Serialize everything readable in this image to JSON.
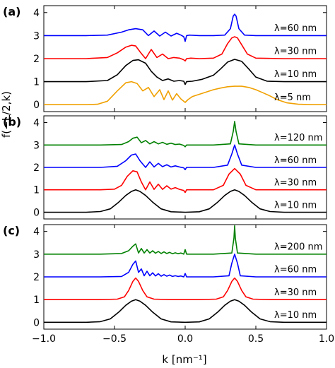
{
  "chart_data": {
    "type": "line",
    "ylabel": "f(−L/2,k)",
    "xlabel": "k [nm⁻¹]",
    "xlim": [
      -1.0,
      1.0
    ],
    "xticks": [
      -1.0,
      -0.5,
      0.0,
      0.5,
      1.0
    ],
    "xtick_labels": [
      "−1.0",
      "−0.5",
      "0.0",
      "0.5",
      "1.0"
    ],
    "grid": false,
    "panels": [
      {
        "label": "(a)",
        "ylim": [
          -0.3,
          4.3
        ],
        "yticks": [
          0,
          1,
          2,
          3,
          4
        ],
        "ytick_labels": [
          "0",
          "1",
          "2",
          "3",
          "4"
        ],
        "series": [
          {
            "name": "λ=60 nm",
            "color": "#0000ff",
            "offset": 3,
            "x": [
              -1.0,
              -0.7,
              -0.55,
              -0.45,
              -0.4,
              -0.35,
              -0.3,
              -0.26,
              -0.22,
              -0.18,
              -0.14,
              -0.1,
              -0.06,
              -0.03,
              -0.01,
              0.0,
              0.01,
              0.03,
              0.1,
              0.2,
              0.28,
              0.32,
              0.34,
              0.35,
              0.36,
              0.38,
              0.42,
              0.5,
              0.7,
              1.0
            ],
            "y": [
              3.0,
              3.0,
              3.02,
              3.15,
              3.25,
              3.3,
              3.25,
              3.0,
              3.2,
              2.98,
              3.15,
              2.98,
              3.1,
              3.02,
              2.95,
              2.75,
              3.0,
              3.02,
              3.0,
              3.0,
              3.02,
              3.3,
              3.85,
              3.93,
              3.85,
              3.3,
              3.02,
              3.0,
              3.0,
              3.0
            ]
          },
          {
            "name": "λ=30 nm",
            "color": "#ff0000",
            "offset": 2,
            "x": [
              -1.0,
              -0.7,
              -0.55,
              -0.48,
              -0.42,
              -0.38,
              -0.35,
              -0.32,
              -0.28,
              -0.24,
              -0.2,
              -0.16,
              -0.12,
              -0.08,
              -0.04,
              -0.01,
              0.0,
              0.01,
              0.04,
              0.1,
              0.2,
              0.26,
              0.3,
              0.33,
              0.35,
              0.37,
              0.4,
              0.44,
              0.5,
              0.7,
              1.0
            ],
            "y": [
              2.0,
              2.0,
              2.05,
              2.25,
              2.5,
              2.58,
              2.55,
              2.3,
              2.0,
              2.4,
              2.05,
              2.2,
              2.0,
              2.05,
              2.02,
              1.95,
              1.9,
              2.0,
              2.02,
              2.0,
              2.02,
              2.2,
              2.65,
              2.9,
              2.95,
              2.9,
              2.6,
              2.2,
              2.02,
              2.0,
              2.0
            ]
          },
          {
            "name": "λ=10 nm",
            "color": "#000000",
            "offset": 1,
            "x": [
              -1.0,
              -0.7,
              -0.55,
              -0.48,
              -0.42,
              -0.37,
              -0.33,
              -0.28,
              -0.24,
              -0.2,
              -0.16,
              -0.12,
              -0.08,
              -0.04,
              -0.01,
              0.0,
              0.01,
              0.05,
              0.12,
              0.2,
              0.25,
              0.3,
              0.35,
              0.4,
              0.45,
              0.5,
              0.58,
              0.7,
              1.0
            ],
            "y": [
              1.0,
              1.0,
              1.05,
              1.3,
              1.7,
              1.92,
              1.95,
              1.8,
              1.45,
              1.2,
              1.05,
              1.12,
              1.02,
              1.05,
              1.02,
              0.88,
              1.0,
              1.02,
              1.1,
              1.28,
              1.55,
              1.85,
              1.97,
              1.88,
              1.55,
              1.2,
              1.02,
              1.0,
              1.0
            ]
          },
          {
            "name": "λ=5 nm",
            "color": "#f0a000",
            "offset": 0,
            "x": [
              -1.0,
              -0.8,
              -0.7,
              -0.62,
              -0.55,
              -0.48,
              -0.42,
              -0.38,
              -0.34,
              -0.3,
              -0.26,
              -0.22,
              -0.18,
              -0.15,
              -0.12,
              -0.09,
              -0.06,
              -0.03,
              0.0,
              0.02,
              0.05,
              0.1,
              0.15,
              0.2,
              0.25,
              0.3,
              0.35,
              0.4,
              0.45,
              0.5,
              0.55,
              0.6,
              0.65,
              0.72,
              0.8,
              0.9,
              1.0
            ],
            "y": [
              0.0,
              0.0,
              0.0,
              0.02,
              0.15,
              0.6,
              0.95,
              1.0,
              0.92,
              0.6,
              0.75,
              0.35,
              0.65,
              0.22,
              0.6,
              0.2,
              0.48,
              0.25,
              0.1,
              0.22,
              0.35,
              0.45,
              0.55,
              0.65,
              0.72,
              0.78,
              0.8,
              0.8,
              0.75,
              0.65,
              0.52,
              0.38,
              0.22,
              0.08,
              0.02,
              0.0,
              0.0
            ]
          }
        ]
      },
      {
        "label": "(b)",
        "ylim": [
          -0.3,
          4.3
        ],
        "yticks": [
          0,
          1,
          2,
          3,
          4
        ],
        "ytick_labels": [
          "0",
          "1",
          "2",
          "3",
          "4"
        ],
        "series": [
          {
            "name": "λ=120 nm",
            "color": "#008000",
            "offset": 3,
            "x": [
              -1.0,
              -0.6,
              -0.45,
              -0.4,
              -0.37,
              -0.34,
              -0.31,
              -0.28,
              -0.25,
              -0.22,
              -0.19,
              -0.16,
              -0.13,
              -0.1,
              -0.07,
              -0.04,
              -0.01,
              0.0,
              0.01,
              0.05,
              0.2,
              0.32,
              0.34,
              0.35,
              0.36,
              0.38,
              0.5,
              1.0
            ],
            "y": [
              3.0,
              3.0,
              3.02,
              3.15,
              3.3,
              3.35,
              3.1,
              3.2,
              3.05,
              3.15,
              3.05,
              3.12,
              3.03,
              3.08,
              3.02,
              3.04,
              2.98,
              2.92,
              3.0,
              3.0,
              3.0,
              3.05,
              3.6,
              4.05,
              3.6,
              3.05,
              3.0,
              3.0
            ]
          },
          {
            "name": "λ=60 nm",
            "color": "#0000ff",
            "offset": 2,
            "x": [
              -1.0,
              -0.6,
              -0.48,
              -0.42,
              -0.38,
              -0.35,
              -0.32,
              -0.28,
              -0.25,
              -0.22,
              -0.19,
              -0.16,
              -0.13,
              -0.1,
              -0.07,
              -0.04,
              -0.01,
              0.0,
              0.01,
              0.05,
              0.2,
              0.3,
              0.33,
              0.35,
              0.37,
              0.4,
              0.5,
              1.0
            ],
            "y": [
              2.0,
              2.0,
              2.05,
              2.3,
              2.55,
              2.6,
              2.3,
              2.0,
              2.25,
              2.02,
              2.18,
              2.03,
              2.12,
              2.02,
              2.07,
              2.02,
              1.98,
              1.9,
              2.0,
              2.0,
              2.0,
              2.1,
              2.6,
              3.0,
              2.6,
              2.1,
              2.0,
              2.0
            ]
          },
          {
            "name": "λ=30 nm",
            "color": "#ff0000",
            "offset": 1,
            "x": [
              -1.0,
              -0.6,
              -0.5,
              -0.45,
              -0.41,
              -0.37,
              -0.34,
              -0.31,
              -0.28,
              -0.25,
              -0.22,
              -0.19,
              -0.16,
              -0.13,
              -0.1,
              -0.07,
              -0.04,
              -0.01,
              0.0,
              0.01,
              0.05,
              0.2,
              0.27,
              0.31,
              0.35,
              0.39,
              0.43,
              0.5,
              1.0
            ],
            "y": [
              1.0,
              1.0,
              1.03,
              1.2,
              1.6,
              1.85,
              1.8,
              1.35,
              1.0,
              1.35,
              1.02,
              1.25,
              1.02,
              1.18,
              1.03,
              1.1,
              1.02,
              0.97,
              0.88,
              1.0,
              1.0,
              1.0,
              1.2,
              1.7,
              1.95,
              1.7,
              1.2,
              1.0,
              1.0
            ]
          },
          {
            "name": "λ=10 nm",
            "color": "#000000",
            "offset": 0,
            "x": [
              -1.0,
              -0.7,
              -0.6,
              -0.53,
              -0.47,
              -0.42,
              -0.38,
              -0.35,
              -0.32,
              -0.28,
              -0.23,
              -0.17,
              -0.1,
              0.0,
              0.1,
              0.17,
              0.23,
              0.28,
              0.32,
              0.35,
              0.38,
              0.42,
              0.47,
              0.53,
              0.6,
              0.7,
              1.0
            ],
            "y": [
              0.0,
              0.0,
              0.03,
              0.15,
              0.45,
              0.75,
              0.93,
              1.0,
              0.93,
              0.75,
              0.45,
              0.15,
              0.02,
              0.0,
              0.02,
              0.15,
              0.45,
              0.75,
              0.93,
              1.0,
              0.93,
              0.75,
              0.45,
              0.15,
              0.03,
              0.0,
              0.0
            ]
          }
        ]
      },
      {
        "label": "(c)",
        "ylim": [
          -0.3,
          4.3
        ],
        "yticks": [
          0,
          1,
          2,
          3,
          4
        ],
        "ytick_labels": [
          "0",
          "1",
          "2",
          "3",
          "4"
        ],
        "series": [
          {
            "name": "λ=200 nm",
            "color": "#008000",
            "offset": 3,
            "x": [
              -1.0,
              -0.6,
              -0.45,
              -0.4,
              -0.37,
              -0.35,
              -0.33,
              -0.31,
              -0.29,
              -0.27,
              -0.25,
              -0.23,
              -0.21,
              -0.19,
              -0.17,
              -0.15,
              -0.13,
              -0.11,
              -0.09,
              -0.07,
              -0.05,
              -0.03,
              -0.01,
              0.0,
              0.01,
              0.03,
              0.2,
              0.33,
              0.345,
              0.35,
              0.355,
              0.37,
              0.5,
              1.0
            ],
            "y": [
              3.0,
              3.0,
              3.03,
              3.15,
              3.35,
              3.45,
              3.05,
              3.25,
              3.05,
              3.2,
              3.05,
              3.15,
              3.04,
              3.12,
              3.03,
              3.1,
              3.03,
              3.08,
              3.02,
              3.06,
              3.02,
              3.05,
              3.0,
              3.2,
              3.0,
              3.0,
              3.0,
              3.05,
              3.7,
              4.25,
              3.7,
              3.05,
              3.0,
              3.0
            ]
          },
          {
            "name": "λ=60 nm",
            "color": "#0000ff",
            "offset": 2,
            "x": [
              -1.0,
              -0.6,
              -0.45,
              -0.4,
              -0.37,
              -0.35,
              -0.33,
              -0.31,
              -0.29,
              -0.27,
              -0.25,
              -0.23,
              -0.21,
              -0.19,
              -0.17,
              -0.15,
              -0.13,
              -0.11,
              -0.09,
              -0.07,
              -0.05,
              -0.03,
              -0.01,
              0.0,
              0.01,
              0.03,
              0.2,
              0.31,
              0.33,
              0.35,
              0.37,
              0.39,
              0.5,
              1.0
            ],
            "y": [
              2.0,
              2.0,
              2.02,
              2.2,
              2.55,
              2.7,
              2.2,
              2.35,
              2.05,
              2.25,
              2.05,
              2.18,
              2.04,
              2.14,
              2.03,
              2.1,
              2.03,
              2.08,
              2.02,
              2.05,
              2.02,
              2.04,
              2.0,
              2.15,
              2.0,
              2.0,
              2.0,
              2.05,
              2.6,
              3.0,
              2.6,
              2.05,
              2.0,
              2.0
            ]
          },
          {
            "name": "λ=30 nm",
            "color": "#ff0000",
            "offset": 1,
            "x": [
              -1.0,
              -0.6,
              -0.48,
              -0.43,
              -0.4,
              -0.37,
              -0.35,
              -0.33,
              -0.3,
              -0.27,
              -0.22,
              -0.1,
              0.0,
              0.1,
              0.22,
              0.27,
              0.3,
              0.33,
              0.35,
              0.37,
              0.4,
              0.43,
              0.48,
              0.6,
              1.0
            ],
            "y": [
              1.0,
              1.0,
              1.02,
              1.12,
              1.4,
              1.8,
              1.95,
              1.8,
              1.4,
              1.12,
              1.02,
              1.0,
              1.0,
              1.0,
              1.02,
              1.12,
              1.4,
              1.8,
              1.95,
              1.8,
              1.4,
              1.12,
              1.02,
              1.0,
              1.0
            ]
          },
          {
            "name": "λ=10 nm",
            "color": "#000000",
            "offset": 0,
            "x": [
              -1.0,
              -0.7,
              -0.6,
              -0.53,
              -0.47,
              -0.42,
              -0.38,
              -0.35,
              -0.32,
              -0.28,
              -0.23,
              -0.17,
              -0.1,
              0.0,
              0.1,
              0.17,
              0.23,
              0.28,
              0.32,
              0.35,
              0.38,
              0.42,
              0.47,
              0.53,
              0.6,
              0.7,
              1.0
            ],
            "y": [
              0.0,
              0.0,
              0.03,
              0.15,
              0.45,
              0.75,
              0.93,
              1.0,
              0.93,
              0.75,
              0.45,
              0.15,
              0.02,
              0.0,
              0.02,
              0.15,
              0.45,
              0.75,
              0.93,
              1.0,
              0.93,
              0.75,
              0.45,
              0.15,
              0.03,
              0.0,
              0.0
            ]
          }
        ]
      }
    ]
  }
}
